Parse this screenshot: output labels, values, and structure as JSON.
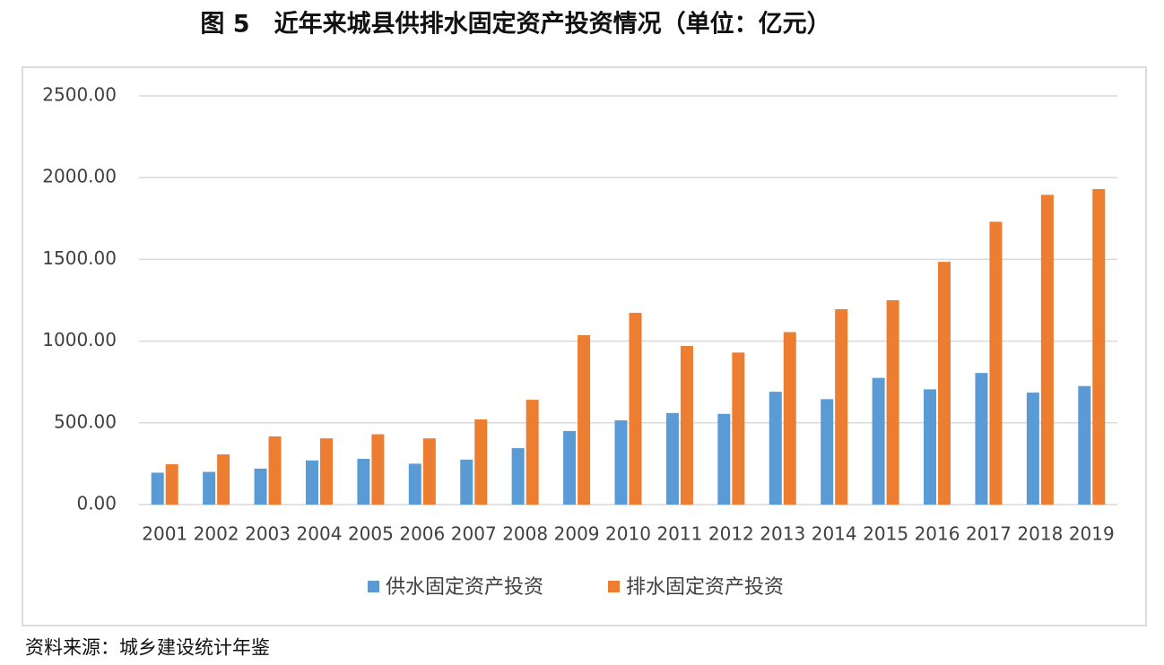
{
  "chart_data": {
    "type": "bar",
    "title": "图 5　近年来城县供排水固定资产投资情况（单位：亿元）",
    "source": "资料来源：城乡建设统计年鉴",
    "categories": [
      "2001",
      "2002",
      "2003",
      "2004",
      "2005",
      "2006",
      "2007",
      "2008",
      "2009",
      "2010",
      "2011",
      "2012",
      "2013",
      "2014",
      "2015",
      "2016",
      "2017",
      "2018",
      "2019"
    ],
    "series": [
      {
        "name": "供水固定资产投资",
        "color": "#5b9bd5",
        "values": [
          195,
          200,
          220,
          270,
          280,
          250,
          275,
          345,
          450,
          515,
          560,
          555,
          690,
          645,
          775,
          705,
          805,
          685,
          725
        ]
      },
      {
        "name": "排水固定资产投资",
        "color": "#ed7d31",
        "values": [
          247,
          307,
          417,
          405,
          430,
          405,
          521,
          641,
          1036,
          1173,
          970,
          930,
          1055,
          1195,
          1250,
          1485,
          1730,
          1895,
          1930
        ]
      }
    ],
    "ylim": [
      0,
      2500
    ],
    "yticks": [
      {
        "value": 0,
        "label": "0.00"
      },
      {
        "value": 500,
        "label": "500.00"
      },
      {
        "value": 1000,
        "label": "1000.00"
      },
      {
        "value": 1500,
        "label": "1500.00"
      },
      {
        "value": 2000,
        "label": "2000.00"
      },
      {
        "value": 2500,
        "label": "2500.00"
      }
    ],
    "grid": true,
    "legend": "bottom"
  }
}
